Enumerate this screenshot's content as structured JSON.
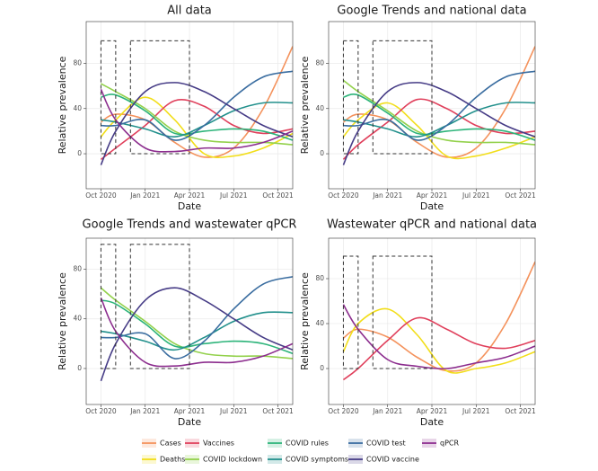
{
  "legend": [
    {
      "name": "Cases",
      "color": "#f4925c"
    },
    {
      "name": "Deaths",
      "color": "#f2de1a"
    },
    {
      "name": "Vaccines",
      "color": "#e0405c"
    },
    {
      "name": "COVID lockdown",
      "color": "#93d14c"
    },
    {
      "name": "COVID rules",
      "color": "#2db47a"
    },
    {
      "name": "COVID symptoms",
      "color": "#22908c"
    },
    {
      "name": "COVID test",
      "color": "#3a6da0"
    },
    {
      "name": "COVID vaccine",
      "color": "#463c86"
    },
    {
      "name": "qPCR",
      "color": "#8c2d8e"
    }
  ],
  "chart_data": [
    {
      "type": "line",
      "title": "All data",
      "x_label": "Date",
      "y_label": "Relative prevalence",
      "x": [
        "2020-10",
        "2020-11",
        "2021-01",
        "2021-03",
        "2021-05",
        "2021-07",
        "2021-09",
        "2021-11"
      ],
      "xlim": [
        "2020-09",
        "2021-11"
      ],
      "xticks": [
        {
          "value": "2020-10",
          "label": "Oct 2020"
        },
        {
          "value": "2021-01",
          "label": "Jan 2021"
        },
        {
          "value": "2021-04",
          "label": "Apr 2021"
        },
        {
          "value": "2021-07",
          "label": "Jul 2021"
        },
        {
          "value": "2021-10",
          "label": "Oct 2021"
        }
      ],
      "ylim": [
        -31,
        117
      ],
      "yticks": [
        0,
        40,
        80
      ],
      "grid": true,
      "periods": [
        {
          "start": "2020-10",
          "end": "2020-11",
          "ymin": 0,
          "ymax": 100
        },
        {
          "start": "2020-12",
          "end": "2021-04",
          "ymin": 0,
          "ymax": 100
        }
      ],
      "series": [
        {
          "name": "Cases",
          "color": "#f4925c",
          "values": [
            28,
            35,
            30,
            10,
            -3,
            5,
            40,
            95
          ]
        },
        {
          "name": "Deaths",
          "color": "#f2de1a",
          "values": [
            15,
            30,
            50,
            30,
            0,
            -2,
            5,
            18
          ]
        },
        {
          "name": "Vaccines",
          "color": "#e0405c",
          "values": [
            -5,
            5,
            25,
            47,
            42,
            25,
            18,
            22
          ]
        },
        {
          "name": "COVID lockdown",
          "color": "#93d14c",
          "values": [
            62,
            55,
            40,
            20,
            12,
            10,
            10,
            8
          ]
        },
        {
          "name": "COVID rules",
          "color": "#2db47a",
          "values": [
            50,
            52,
            38,
            18,
            20,
            22,
            20,
            12
          ]
        },
        {
          "name": "COVID symptoms",
          "color": "#22908c",
          "values": [
            30,
            28,
            22,
            15,
            25,
            38,
            45,
            45
          ]
        },
        {
          "name": "COVID test",
          "color": "#3a6da0",
          "values": [
            25,
            25,
            30,
            12,
            25,
            50,
            68,
            73
          ]
        },
        {
          "name": "COVID vaccine",
          "color": "#463c86",
          "values": [
            -10,
            20,
            55,
            63,
            55,
            40,
            25,
            15
          ]
        },
        {
          "name": "qPCR",
          "color": "#8c2d8e",
          "values": [
            57,
            30,
            5,
            2,
            5,
            5,
            10,
            20
          ]
        }
      ]
    },
    {
      "type": "line",
      "title": "Google Trends and national data",
      "x_label": "Date",
      "y_label": "Relative prevalence",
      "x": [
        "2020-10",
        "2020-11",
        "2021-01",
        "2021-03",
        "2021-05",
        "2021-07",
        "2021-09",
        "2021-11"
      ],
      "xlim": [
        "2020-09",
        "2021-11"
      ],
      "xticks": [
        {
          "value": "2020-10",
          "label": "Oct 2020"
        },
        {
          "value": "2021-01",
          "label": "Jan 2021"
        },
        {
          "value": "2021-04",
          "label": "Apr 2021"
        },
        {
          "value": "2021-07",
          "label": "Jul 2021"
        },
        {
          "value": "2021-10",
          "label": "Oct 2021"
        }
      ],
      "ylim": [
        -31,
        117
      ],
      "yticks": [
        0,
        40,
        80
      ],
      "grid": true,
      "periods": [
        {
          "start": "2020-10",
          "end": "2020-11",
          "ymin": 0,
          "ymax": 100
        },
        {
          "start": "2020-12",
          "end": "2021-04",
          "ymin": 0,
          "ymax": 100
        }
      ],
      "series": [
        {
          "name": "Cases",
          "color": "#f4925c",
          "values": [
            28,
            35,
            30,
            10,
            -3,
            5,
            40,
            95
          ]
        },
        {
          "name": "Deaths",
          "color": "#f2de1a",
          "values": [
            15,
            30,
            45,
            25,
            -2,
            -2,
            5,
            15
          ]
        },
        {
          "name": "Vaccines",
          "color": "#e0405c",
          "values": [
            -5,
            8,
            28,
            48,
            40,
            25,
            18,
            20
          ]
        },
        {
          "name": "COVID lockdown",
          "color": "#93d14c",
          "values": [
            65,
            55,
            38,
            20,
            12,
            10,
            10,
            8
          ]
        },
        {
          "name": "COVID rules",
          "color": "#2db47a",
          "values": [
            50,
            52,
            36,
            18,
            20,
            22,
            20,
            12
          ]
        },
        {
          "name": "COVID symptoms",
          "color": "#22908c",
          "values": [
            30,
            28,
            22,
            15,
            25,
            38,
            45,
            45
          ]
        },
        {
          "name": "COVID test",
          "color": "#3a6da0",
          "values": [
            25,
            25,
            30,
            12,
            25,
            50,
            68,
            73
          ]
        },
        {
          "name": "COVID vaccine",
          "color": "#463c86",
          "values": [
            -10,
            20,
            55,
            63,
            55,
            40,
            25,
            15
          ]
        }
      ]
    },
    {
      "type": "line",
      "title": "Google Trends and wastewater qPCR",
      "x_label": "Date",
      "y_label": "Relative prevalence",
      "x": [
        "2020-10",
        "2020-11",
        "2021-01",
        "2021-03",
        "2021-05",
        "2021-07",
        "2021-09",
        "2021-11"
      ],
      "xlim": [
        "2020-09",
        "2021-11"
      ],
      "xticks": [
        {
          "value": "2020-10",
          "label": "Oct 2020"
        },
        {
          "value": "2021-01",
          "label": "Jan 2021"
        },
        {
          "value": "2021-04",
          "label": "Apr 2021"
        },
        {
          "value": "2021-07",
          "label": "Jul 2021"
        },
        {
          "value": "2021-10",
          "label": "Oct 2021"
        }
      ],
      "ylim": [
        -29,
        105
      ],
      "yticks": [
        0,
        40,
        80
      ],
      "grid": true,
      "periods": [
        {
          "start": "2020-10",
          "end": "2020-11",
          "ymin": 0,
          "ymax": 100
        },
        {
          "start": "2020-12",
          "end": "2021-04",
          "ymin": 0,
          "ymax": 100
        }
      ],
      "series": [
        {
          "name": "COVID lockdown",
          "color": "#93d14c",
          "values": [
            65,
            55,
            38,
            20,
            12,
            10,
            10,
            8
          ]
        },
        {
          "name": "COVID rules",
          "color": "#2db47a",
          "values": [
            55,
            52,
            36,
            18,
            20,
            22,
            20,
            12
          ]
        },
        {
          "name": "COVID symptoms",
          "color": "#22908c",
          "values": [
            30,
            28,
            22,
            15,
            25,
            38,
            45,
            45
          ]
        },
        {
          "name": "COVID test",
          "color": "#3a6da0",
          "values": [
            25,
            25,
            28,
            8,
            22,
            48,
            68,
            74
          ]
        },
        {
          "name": "COVID vaccine",
          "color": "#463c86",
          "values": [
            -10,
            20,
            55,
            65,
            55,
            40,
            25,
            15
          ]
        },
        {
          "name": "qPCR",
          "color": "#8c2d8e",
          "values": [
            57,
            30,
            5,
            2,
            5,
            5,
            10,
            20
          ]
        }
      ]
    },
    {
      "type": "line",
      "title": "Wastewater qPCR and national data",
      "x_label": "Date",
      "y_label": "Relative prevalence",
      "x": [
        "2020-10",
        "2020-11",
        "2021-01",
        "2021-03",
        "2021-05",
        "2021-07",
        "2021-09",
        "2021-11"
      ],
      "xlim": [
        "2020-09",
        "2021-11"
      ],
      "xticks": [
        {
          "value": "2020-10",
          "label": "Oct 2020"
        },
        {
          "value": "2021-01",
          "label": "Jan 2021"
        },
        {
          "value": "2021-04",
          "label": "Apr 2021"
        },
        {
          "value": "2021-07",
          "label": "Jul 2021"
        },
        {
          "value": "2021-10",
          "label": "Oct 2021"
        }
      ],
      "ylim": [
        -32,
        116
      ],
      "yticks": [
        0,
        40,
        80
      ],
      "grid": true,
      "periods": [
        {
          "start": "2020-10",
          "end": "2020-11",
          "ymin": 0,
          "ymax": 100
        },
        {
          "start": "2020-12",
          "end": "2021-04",
          "ymin": 0,
          "ymax": 100
        }
      ],
      "series": [
        {
          "name": "Cases",
          "color": "#f4925c",
          "values": [
            27,
            35,
            28,
            10,
            -2,
            5,
            40,
            95
          ]
        },
        {
          "name": "Deaths",
          "color": "#f2de1a",
          "values": [
            15,
            40,
            53,
            30,
            -2,
            0,
            5,
            15
          ]
        },
        {
          "name": "Vaccines",
          "color": "#e0405c",
          "values": [
            -10,
            0,
            25,
            45,
            35,
            22,
            18,
            25
          ]
        },
        {
          "name": "qPCR",
          "color": "#8c2d8e",
          "values": [
            57,
            35,
            8,
            2,
            0,
            5,
            10,
            20
          ]
        }
      ]
    }
  ]
}
